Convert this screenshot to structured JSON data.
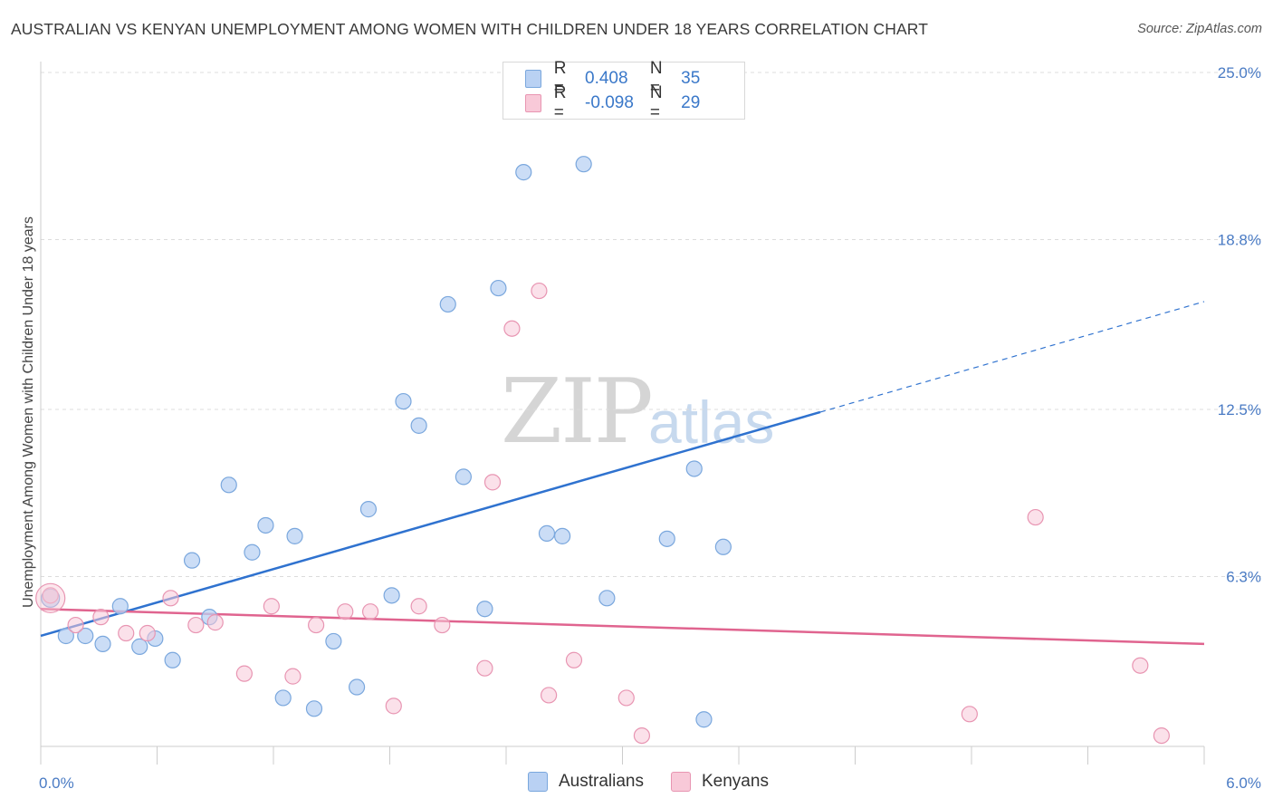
{
  "title": "AUSTRALIAN VS KENYAN UNEMPLOYMENT AMONG WOMEN WITH CHILDREN UNDER 18 YEARS CORRELATION CHART",
  "source": "Source: ZipAtlas.com",
  "watermark": {
    "zip": "ZIP",
    "atlas": "atlas"
  },
  "legend": {
    "australians": {
      "r_label": "R =",
      "r_value": "0.408",
      "n_label": "N =",
      "n_value": "35"
    },
    "kenyans": {
      "r_label": "R =",
      "r_value": "-0.098",
      "n_label": "N =",
      "n_value": "29"
    }
  },
  "bottom_legend": {
    "australians": "Australians",
    "kenyans": "Kenyans"
  },
  "colors": {
    "australians_fill": "#b9d1f3",
    "australians_stroke": "#7aa7dd",
    "australians_line": "#2f72cf",
    "kenyans_fill": "#f8c9d8",
    "kenyans_stroke": "#e895b2",
    "kenyans_line": "#e0648f"
  },
  "chart_data": {
    "type": "scatter",
    "title": "AUSTRALIAN VS KENYAN UNEMPLOYMENT AMONG WOMEN WITH CHILDREN UNDER 18 YEARS CORRELATION CHART",
    "xlabel": "",
    "ylabel": "Unemployment Among Women with Children Under 18 years",
    "xlim": [
      0,
      6
    ],
    "ylim": [
      0,
      25
    ],
    "x_tick_labels": [
      "0.0%",
      "6.0%"
    ],
    "y_ticks": [
      6.3,
      12.5,
      18.8,
      25.0
    ],
    "y_tick_labels": [
      "6.3%",
      "12.5%",
      "18.8%",
      "25.0%"
    ],
    "grid": true,
    "legend_position": "top-center",
    "series": [
      {
        "name": "Australians",
        "points": [
          [
            0.05,
            5.5
          ],
          [
            0.13,
            4.1
          ],
          [
            0.23,
            4.1
          ],
          [
            0.32,
            3.8
          ],
          [
            0.41,
            5.2
          ],
          [
            0.51,
            3.7
          ],
          [
            0.59,
            4.0
          ],
          [
            0.68,
            3.2
          ],
          [
            0.78,
            6.9
          ],
          [
            0.87,
            4.8
          ],
          [
            0.97,
            9.7
          ],
          [
            1.09,
            7.2
          ],
          [
            1.16,
            8.2
          ],
          [
            1.25,
            1.8
          ],
          [
            1.31,
            7.8
          ],
          [
            1.41,
            1.4
          ],
          [
            1.51,
            3.9
          ],
          [
            1.63,
            2.2
          ],
          [
            1.69,
            8.8
          ],
          [
            1.81,
            5.6
          ],
          [
            1.87,
            12.8
          ],
          [
            1.95,
            11.9
          ],
          [
            2.1,
            16.4
          ],
          [
            2.18,
            10.0
          ],
          [
            2.29,
            5.1
          ],
          [
            2.36,
            17.0
          ],
          [
            2.49,
            21.3
          ],
          [
            2.61,
            7.9
          ],
          [
            2.69,
            7.8
          ],
          [
            2.8,
            21.6
          ],
          [
            2.92,
            5.5
          ],
          [
            3.23,
            7.7
          ],
          [
            3.37,
            10.3
          ],
          [
            3.42,
            1.0
          ],
          [
            3.52,
            7.4
          ]
        ]
      },
      {
        "name": "Kenyans",
        "points": [
          [
            0.05,
            5.6
          ],
          [
            0.18,
            4.5
          ],
          [
            0.31,
            4.8
          ],
          [
            0.44,
            4.2
          ],
          [
            0.55,
            4.2
          ],
          [
            0.67,
            5.5
          ],
          [
            0.8,
            4.5
          ],
          [
            0.9,
            4.6
          ],
          [
            1.05,
            2.7
          ],
          [
            1.19,
            5.2
          ],
          [
            1.3,
            2.6
          ],
          [
            1.42,
            4.5
          ],
          [
            1.57,
            5.0
          ],
          [
            1.7,
            5.0
          ],
          [
            1.82,
            1.5
          ],
          [
            1.95,
            5.2
          ],
          [
            2.07,
            4.5
          ],
          [
            2.29,
            2.9
          ],
          [
            2.33,
            9.8
          ],
          [
            2.43,
            15.5
          ],
          [
            2.57,
            16.9
          ],
          [
            2.62,
            1.9
          ],
          [
            2.75,
            3.2
          ],
          [
            3.02,
            1.8
          ],
          [
            3.1,
            0.4
          ],
          [
            4.79,
            1.2
          ],
          [
            5.13,
            8.5
          ],
          [
            5.67,
            3.0
          ],
          [
            5.78,
            0.4
          ]
        ]
      }
    ],
    "trend_lines": [
      {
        "name": "Australians",
        "solid": [
          [
            0,
            4.1
          ],
          [
            4.02,
            12.4
          ]
        ],
        "dashed": [
          [
            4.02,
            12.4
          ],
          [
            6.0,
            16.5
          ]
        ]
      },
      {
        "name": "Kenyans",
        "solid": [
          [
            0,
            5.1
          ],
          [
            6.0,
            3.8
          ]
        ]
      }
    ]
  }
}
